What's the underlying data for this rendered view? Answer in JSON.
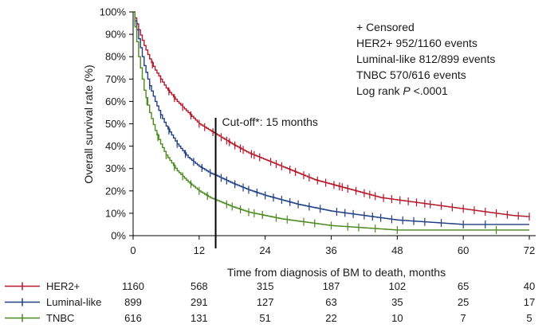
{
  "chart_data": {
    "type": "line",
    "title": "",
    "xlabel": "Time from diagnosis of BM to death, months",
    "ylabel": "Overall survival rate (%)",
    "xlim": [
      0,
      72
    ],
    "ylim": [
      0,
      100
    ],
    "x_ticks": [
      0,
      12,
      24,
      36,
      48,
      60,
      72
    ],
    "y_ticks": [
      0,
      10,
      20,
      30,
      40,
      50,
      60,
      70,
      80,
      90,
      100
    ],
    "y_tick_suffix": "%",
    "grid": false,
    "legend": {
      "placement": "top-right",
      "lines": [
        "+ Censored",
        "HER2+ 952/1160 events",
        "Luminal-like 812/899 events",
        "TNBC 570/616 events"
      ],
      "logrank_prefix": "Log rank ",
      "logrank_p": "P",
      "logrank_value": " <.0001"
    },
    "cutoff": {
      "x": 15,
      "label_main": "Cut-off",
      "label_rest": "*: 15 months"
    },
    "series": [
      {
        "name": "HER2+",
        "color": "#b5192b",
        "x": [
          0,
          1,
          2,
          3,
          4,
          5,
          6,
          8,
          10,
          12,
          14,
          15,
          18,
          21,
          24,
          27,
          30,
          33,
          36,
          39,
          42,
          45,
          48,
          51,
          54,
          57,
          60,
          63,
          66,
          69,
          72
        ],
        "y": [
          100,
          92,
          85,
          79,
          74,
          70,
          66,
          60,
          55,
          50,
          47,
          45.5,
          41,
          37,
          34,
          31,
          28,
          25,
          23,
          21,
          19,
          17,
          16,
          15,
          14,
          13,
          12,
          11,
          10,
          9,
          8.5
        ],
        "censored_x": [
          3.5,
          5,
          6.5,
          7.5,
          9,
          10.5,
          12,
          13,
          14.5,
          16,
          17,
          17.5,
          18.5,
          19.5,
          20,
          21.5,
          22,
          23,
          25,
          26,
          27,
          28.5,
          29.5,
          31,
          32,
          33.5,
          35,
          36.5,
          37.5,
          38,
          39,
          40.5,
          42,
          43,
          44,
          45.5,
          47,
          48.5,
          50,
          51.5,
          53,
          54,
          56,
          58,
          60,
          62,
          64,
          66,
          68,
          70,
          72
        ]
      },
      {
        "name": "Luminal-like",
        "color": "#1f3f85",
        "x": [
          0,
          1,
          2,
          3,
          4,
          5,
          6,
          8,
          10,
          12,
          14,
          15,
          18,
          21,
          24,
          27,
          30,
          33,
          36,
          39,
          42,
          45,
          48,
          51,
          54,
          57,
          60,
          63,
          66,
          69,
          72
        ],
        "y": [
          100,
          88,
          76,
          67,
          60,
          54,
          49,
          41,
          35,
          31,
          28,
          27,
          23.5,
          20.5,
          18,
          16,
          14,
          12.5,
          11,
          10,
          9,
          8,
          7,
          6.5,
          6,
          5.5,
          5,
          5,
          5,
          5,
          5
        ],
        "censored_x": [
          3,
          5,
          6.5,
          8,
          9.5,
          11,
          12.5,
          14,
          16,
          17,
          18.5,
          20,
          21,
          22.5,
          24,
          25.5,
          27,
          28.5,
          30,
          32,
          34,
          37,
          38.5,
          40,
          42,
          43.5,
          45,
          47,
          49,
          51,
          53,
          56,
          60,
          64
        ]
      },
      {
        "name": "TNBC",
        "color": "#4a8a1e",
        "x": [
          0,
          1,
          2,
          3,
          4,
          5,
          6,
          8,
          10,
          12,
          14,
          15,
          18,
          21,
          24,
          27,
          30,
          33,
          36,
          39,
          42,
          45,
          48,
          51,
          54,
          57,
          60,
          63,
          66,
          69,
          72
        ],
        "y": [
          100,
          80,
          65,
          55,
          47,
          41,
          36,
          29,
          24,
          20,
          17,
          16,
          13,
          10.5,
          9,
          7.5,
          6.5,
          5.5,
          4.5,
          4,
          3.5,
          3,
          2.5,
          2.5,
          2.5,
          2.5,
          2.5,
          2.5,
          2.5,
          2.5,
          2.5
        ],
        "censored_x": [
          2.5,
          4.5,
          6,
          7.5,
          9,
          10.5,
          12,
          13.5,
          17,
          18,
          19.5,
          21,
          22,
          23.5,
          26,
          28,
          31,
          33,
          36,
          39,
          41,
          44,
          48,
          66
        ]
      }
    ]
  },
  "risk_table": {
    "rows": [
      {
        "name": "HER2+",
        "color": "#b5192b",
        "values": [
          "1160",
          "568",
          "315",
          "187",
          "102",
          "65",
          "40"
        ]
      },
      {
        "name": "Luminal-like",
        "color": "#1f3f85",
        "values": [
          "899",
          "291",
          "127",
          "63",
          "35",
          "25",
          "17"
        ]
      },
      {
        "name": "TNBC",
        "color": "#4a8a1e",
        "values": [
          "616",
          "131",
          "51",
          "22",
          "10",
          "7",
          "5"
        ]
      }
    ]
  }
}
